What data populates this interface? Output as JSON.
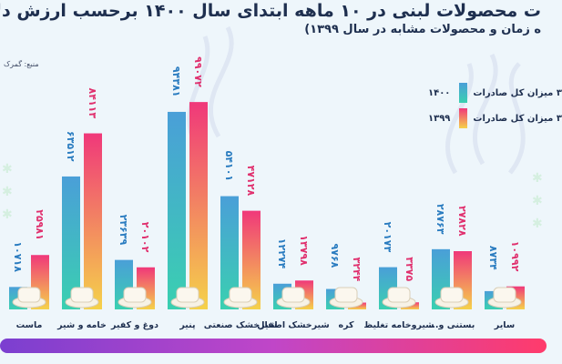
{
  "header": {
    "title_line1": "ت محصولات لبنی در ۱۰ ماهه ابتدای سال ۱۴۰۰ برحسب ارزش دلار",
    "title_line2": "ه زمان و محصولات مشابه در سال ۱۳۹۹)",
    "source": "منبع: گمرک"
  },
  "legend": {
    "items": [
      {
        "label": "۳ میزان کل صادرات",
        "year": "۱۴۰۰"
      },
      {
        "label": "۳ میزان کل صادرات",
        "year": "۱۳۹۹"
      }
    ]
  },
  "colors": {
    "series_1400_top": "#4a9fd8",
    "series_1400_bottom": "#3ad0b0",
    "series_1399_top": "#f0387a",
    "series_1399_bottom": "#f5d24a",
    "footer_left": "#7b3fd0",
    "footer_right": "#ff3b6b"
  },
  "chart_data": {
    "type": "bar",
    "categories": [
      "ماست",
      "خامه و شیر",
      "دوغ و کفیر",
      "پنیر",
      "شیرخشک صنعتی",
      "شیرخشک اطفال",
      "کره",
      "شیروخامه تغلیظ",
      "بستنی و...",
      "سایر"
    ],
    "series": [
      {
        "name": "۱۴۰۰",
        "values": [
          10718,
          63512,
          23639,
          94381,
          54101,
          12274,
          9768,
          20173,
          28763,
          8734
        ]
      },
      {
        "name": "۱۳۹۹",
        "values": [
          25981,
          84113,
          20102,
          99072,
          47128,
          13798,
          3244,
          3375,
          27828,
          10992
        ]
      }
    ],
    "value_labels_1400": [
      "۱۰۷۱۸",
      "۶۳۵۱۲",
      "۲۳۶۳۹",
      "۹۴۳۸۱",
      "۵۴۱۰۱",
      "۱۲۲۷۴",
      "۹۷۶۸",
      "۲۰۱۷۳",
      "۲۸۷۶۳",
      "۸۷۳۴"
    ],
    "value_labels_1399": [
      "۲۵۹۸۱",
      "۸۴۱۱۳",
      "۲۰۱۰۲",
      "۹۹۰۷۲",
      "۴۷۱۲۸",
      "۱۳۷۹۸",
      "۳۲۴۴",
      "۳۳۷۵",
      "۲۷۸۲۸",
      "۱۰۹۹۲"
    ],
    "ylim": [
      0,
      100000
    ],
    "grid": false,
    "legend_position": "top-right"
  }
}
